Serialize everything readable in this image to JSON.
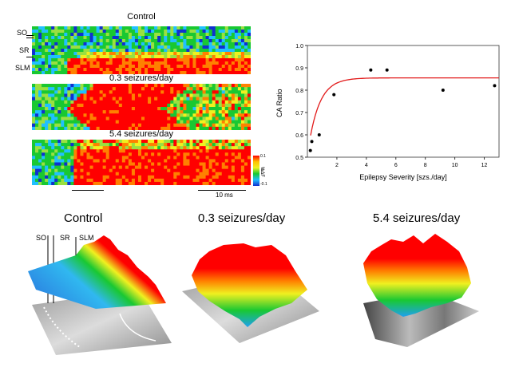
{
  "heatmap_panels": {
    "control": "Control",
    "low": "0.3 seizures/day",
    "high": "5.4 seizures/day"
  },
  "layers": {
    "so": "SO",
    "sr": "SR",
    "slm": "SLM"
  },
  "colorbar": {
    "label": "%ΔF",
    "top": "0.1",
    "mid": "0",
    "bottom": "-0.1"
  },
  "scale_label": "10 ms",
  "surface_titles": {
    "control": "Control",
    "low": "0.3 seizures/day",
    "high": "5.4 seizures/day"
  },
  "colors": {
    "red": "#ff0000",
    "green": "#19c832",
    "blue": "#1030d0",
    "yellow": "#f0f020",
    "cyan": "#20c0ff",
    "fit": "#e21a1a"
  },
  "chart_data": {
    "type": "scatter",
    "xlabel": "Epilepsy Severity [szs./day]",
    "ylabel": "CA Ratio",
    "xlim": [
      0,
      13
    ],
    "ylim": [
      0.5,
      1.0
    ],
    "xticks": [
      "2",
      "4",
      "6",
      "8",
      "10",
      "12"
    ],
    "yticks": [
      "0.5",
      "0.6",
      "0.7",
      "0.8",
      "0.9",
      "1.0"
    ],
    "x": [
      0.2,
      0.3,
      0.8,
      1.8,
      4.3,
      5.4,
      9.2,
      12.7
    ],
    "y": [
      0.53,
      0.57,
      0.6,
      0.78,
      0.89,
      0.89,
      0.8,
      0.82
    ],
    "fit": {
      "plateau": 0.855,
      "y0": 0.51,
      "k": 1.35
    }
  }
}
